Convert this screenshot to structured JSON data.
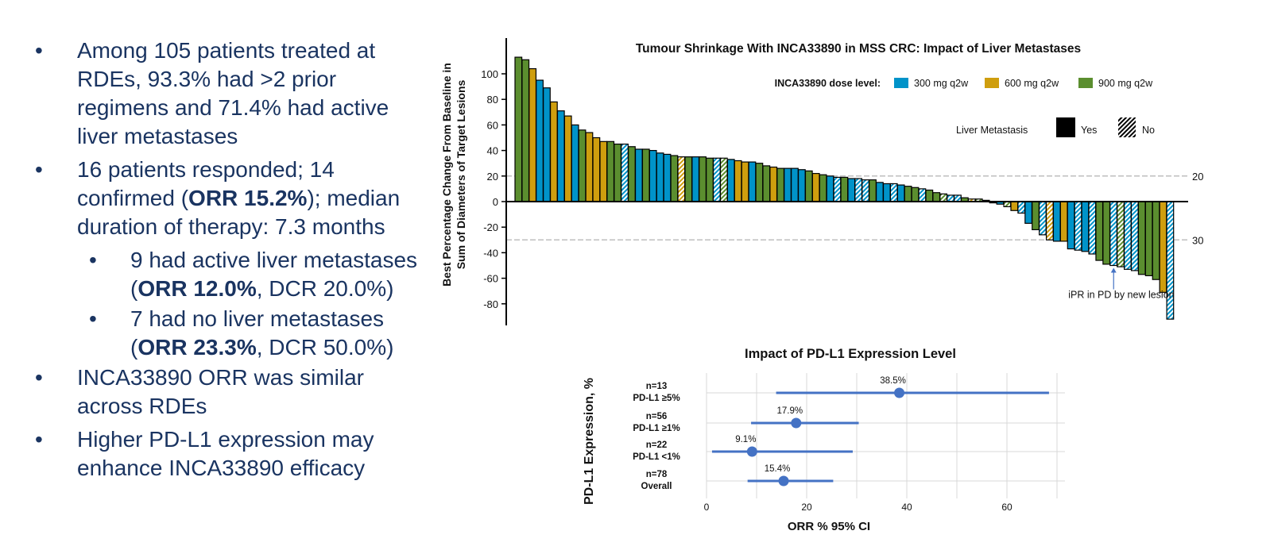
{
  "bullets": [
    {
      "level": 1,
      "parts": [
        {
          "text": "Among 105 patients treated at RDEs, 93.3% had >2 prior regimens and 71.4% had active liver metastases",
          "bold": false
        }
      ]
    },
    {
      "level": 1,
      "parts": [
        {
          "text": "16 patients responded; 14 confirmed (",
          "bold": false
        },
        {
          "text": "ORR 15.2%",
          "bold": true
        },
        {
          "text": "); median duration of therapy: 7.3 months",
          "bold": false
        }
      ]
    },
    {
      "level": 2,
      "parts": [
        {
          "text": "9 had active liver metastases (",
          "bold": false
        },
        {
          "text": "ORR 12.0%",
          "bold": true
        },
        {
          "text": ", DCR 20.0%)",
          "bold": false
        }
      ]
    },
    {
      "level": 2,
      "parts": [
        {
          "text": "7 had no liver metastases (",
          "bold": false
        },
        {
          "text": "ORR 23.3%",
          "bold": true
        },
        {
          "text": ", DCR 50.0%)",
          "bold": false
        }
      ]
    },
    {
      "level": 1,
      "parts": [
        {
          "text": "INCA33890 ORR was similar across RDEs",
          "bold": false
        }
      ]
    },
    {
      "level": 1,
      "parts": [
        {
          "text": "Higher PD-L1 expression may enhance INCA33890 efficacy",
          "bold": false
        }
      ]
    }
  ],
  "bullet_glyph": "•",
  "colors": {
    "text": "#1a3461",
    "dose_300": "#0093c9",
    "dose_600": "#cf9e0e",
    "dose_900": "#5b8e2f",
    "forest": "#4472c4",
    "gridline": "#d9d9d9",
    "refline": "#bfbfbf"
  },
  "chart_data": [
    {
      "type": "bar",
      "subtype": "waterfall",
      "title": "Tumour Shrinkage With INCA33890 in MSS CRC: Impact of Liver Metastases",
      "ylabel": "Best Percentage Change From Baseline in Sum of Diameters of Target Lesions",
      "ylabel_lines": [
        "Best Percentage Change From Baseline in",
        "Sum of Diameters of Target Lesions"
      ],
      "xlabel": "",
      "ylim": [
        -92,
        116
      ],
      "yticks": [
        100,
        80,
        60,
        40,
        20,
        0,
        -20,
        -40,
        -60,
        -80
      ],
      "reference_lines": [
        {
          "value": 20,
          "label": "20",
          "style": "dashed"
        },
        {
          "value": -30,
          "label": "30",
          "style": "dashed"
        }
      ],
      "legend_dose": {
        "title": "INCA33890 dose level:",
        "items": [
          {
            "key": "300",
            "label": "300 mg q2w"
          },
          {
            "key": "600",
            "label": "600 mg q2w"
          },
          {
            "key": "900",
            "label": "900 mg q2w"
          }
        ],
        "placement": "top-right"
      },
      "legend_liver": {
        "title": "Liver Metastasis",
        "items": [
          {
            "key": "yes",
            "label": "Yes"
          },
          {
            "key": "no",
            "label": "No"
          }
        ],
        "placement": "top-right"
      },
      "annotation": {
        "text": "iPR in PD by new lesion",
        "bar_index": 84
      },
      "bars": [
        {
          "v": 113,
          "d": "900",
          "liver": "yes"
        },
        {
          "v": 111,
          "d": "900",
          "liver": "yes"
        },
        {
          "v": 104,
          "d": "600",
          "liver": "yes"
        },
        {
          "v": 95,
          "d": "300",
          "liver": "yes"
        },
        {
          "v": 89,
          "d": "300",
          "liver": "yes"
        },
        {
          "v": 78,
          "d": "600",
          "liver": "yes"
        },
        {
          "v": 71,
          "d": "300",
          "liver": "yes"
        },
        {
          "v": 67,
          "d": "600",
          "liver": "yes"
        },
        {
          "v": 60,
          "d": "300",
          "liver": "yes"
        },
        {
          "v": 56,
          "d": "900",
          "liver": "yes"
        },
        {
          "v": 54,
          "d": "600",
          "liver": "yes"
        },
        {
          "v": 50,
          "d": "600",
          "liver": "yes"
        },
        {
          "v": 47,
          "d": "600",
          "liver": "yes"
        },
        {
          "v": 47,
          "d": "900",
          "liver": "yes"
        },
        {
          "v": 45,
          "d": "900",
          "liver": "yes"
        },
        {
          "v": 45,
          "d": "300",
          "liver": "no"
        },
        {
          "v": 43,
          "d": "900",
          "liver": "yes"
        },
        {
          "v": 41,
          "d": "300",
          "liver": "yes"
        },
        {
          "v": 41,
          "d": "900",
          "liver": "yes"
        },
        {
          "v": 40,
          "d": "300",
          "liver": "yes"
        },
        {
          "v": 38,
          "d": "300",
          "liver": "yes"
        },
        {
          "v": 37,
          "d": "300",
          "liver": "yes"
        },
        {
          "v": 36,
          "d": "900",
          "liver": "yes"
        },
        {
          "v": 35,
          "d": "600",
          "liver": "no"
        },
        {
          "v": 35,
          "d": "900",
          "liver": "yes"
        },
        {
          "v": 35,
          "d": "300",
          "liver": "yes"
        },
        {
          "v": 35,
          "d": "900",
          "liver": "yes"
        },
        {
          "v": 34,
          "d": "900",
          "liver": "yes"
        },
        {
          "v": 34,
          "d": "300",
          "liver": "no"
        },
        {
          "v": 34,
          "d": "900",
          "liver": "no"
        },
        {
          "v": 33,
          "d": "300",
          "liver": "yes"
        },
        {
          "v": 32,
          "d": "600",
          "liver": "yes"
        },
        {
          "v": 31,
          "d": "600",
          "liver": "yes"
        },
        {
          "v": 31,
          "d": "300",
          "liver": "yes"
        },
        {
          "v": 30,
          "d": "900",
          "liver": "yes"
        },
        {
          "v": 28,
          "d": "900",
          "liver": "yes"
        },
        {
          "v": 27,
          "d": "600",
          "liver": "yes"
        },
        {
          "v": 26,
          "d": "900",
          "liver": "yes"
        },
        {
          "v": 26,
          "d": "300",
          "liver": "yes"
        },
        {
          "v": 26,
          "d": "300",
          "liver": "yes"
        },
        {
          "v": 25,
          "d": "300",
          "liver": "yes"
        },
        {
          "v": 24,
          "d": "900",
          "liver": "yes"
        },
        {
          "v": 22,
          "d": "600",
          "liver": "yes"
        },
        {
          "v": 21,
          "d": "900",
          "liver": "yes"
        },
        {
          "v": 20,
          "d": "300",
          "liver": "yes"
        },
        {
          "v": 19,
          "d": "300",
          "liver": "no"
        },
        {
          "v": 19,
          "d": "900",
          "liver": "yes"
        },
        {
          "v": 18,
          "d": "300",
          "liver": "yes"
        },
        {
          "v": 18,
          "d": "300",
          "liver": "no"
        },
        {
          "v": 17,
          "d": "300",
          "liver": "no"
        },
        {
          "v": 17,
          "d": "900",
          "liver": "yes"
        },
        {
          "v": 15,
          "d": "300",
          "liver": "yes"
        },
        {
          "v": 14,
          "d": "300",
          "liver": "yes"
        },
        {
          "v": 14,
          "d": "300",
          "liver": "no"
        },
        {
          "v": 13,
          "d": "300",
          "liver": "yes"
        },
        {
          "v": 12,
          "d": "900",
          "liver": "yes"
        },
        {
          "v": 11,
          "d": "900",
          "liver": "yes"
        },
        {
          "v": 10,
          "d": "300",
          "liver": "no"
        },
        {
          "v": 9,
          "d": "900",
          "liver": "yes"
        },
        {
          "v": 7,
          "d": "900",
          "liver": "yes"
        },
        {
          "v": 6,
          "d": "900",
          "liver": "no"
        },
        {
          "v": 5,
          "d": "300",
          "liver": "no"
        },
        {
          "v": 5,
          "d": "300",
          "liver": "no"
        },
        {
          "v": 3,
          "d": "900",
          "liver": "yes"
        },
        {
          "v": 2,
          "d": "600",
          "liver": "no"
        },
        {
          "v": 2,
          "d": "900",
          "liver": "no"
        },
        {
          "v": 1,
          "d": "900",
          "liver": "no"
        },
        {
          "v": -1,
          "d": "600",
          "liver": "no"
        },
        {
          "v": -2,
          "d": "300",
          "liver": "yes"
        },
        {
          "v": -4,
          "d": "900",
          "liver": "no"
        },
        {
          "v": -7,
          "d": "600",
          "liver": "yes"
        },
        {
          "v": -9,
          "d": "300",
          "liver": "no"
        },
        {
          "v": -17,
          "d": "300",
          "liver": "yes"
        },
        {
          "v": -22,
          "d": "900",
          "liver": "yes"
        },
        {
          "v": -26,
          "d": "300",
          "liver": "no"
        },
        {
          "v": -30,
          "d": "600",
          "liver": "no"
        },
        {
          "v": -31,
          "d": "300",
          "liver": "yes"
        },
        {
          "v": -31,
          "d": "600",
          "liver": "yes"
        },
        {
          "v": -37,
          "d": "300",
          "liver": "yes"
        },
        {
          "v": -38,
          "d": "300",
          "liver": "no"
        },
        {
          "v": -39,
          "d": "300",
          "liver": "yes"
        },
        {
          "v": -41,
          "d": "300",
          "liver": "no"
        },
        {
          "v": -46,
          "d": "900",
          "liver": "yes"
        },
        {
          "v": -49,
          "d": "900",
          "liver": "yes"
        },
        {
          "v": -50,
          "d": "300",
          "liver": "no"
        },
        {
          "v": -51,
          "d": "900",
          "liver": "no"
        },
        {
          "v": -53,
          "d": "300",
          "liver": "no"
        },
        {
          "v": -54,
          "d": "300",
          "liver": "no"
        },
        {
          "v": -57,
          "d": "900",
          "liver": "yes"
        },
        {
          "v": -58,
          "d": "900",
          "liver": "yes"
        },
        {
          "v": -61,
          "d": "900",
          "liver": "yes"
        },
        {
          "v": -71,
          "d": "600",
          "liver": "yes"
        },
        {
          "v": -92,
          "d": "300",
          "liver": "no"
        }
      ]
    },
    {
      "type": "scatter",
      "subtype": "forest",
      "title": "Impact of PD-L1 Expression Level",
      "xlabel": "ORR % 95% CI",
      "ylabel": "PD-L1 Expression, %",
      "xlim": [
        0,
        70
      ],
      "xticks": [
        0,
        20,
        40,
        60
      ],
      "grid": true,
      "rows": [
        {
          "n_label": "n=13",
          "group": "PD-L1 ≥5%",
          "orr": 38.5,
          "ci": [
            13.9,
            68.4
          ],
          "label": "38.5%"
        },
        {
          "n_label": "n=56",
          "group": "PD-L1 ≥1%",
          "orr": 17.9,
          "ci": [
            8.9,
            30.4
          ],
          "label": "17.9%"
        },
        {
          "n_label": "n=22",
          "group": "PD-L1 <1%",
          "orr": 9.1,
          "ci": [
            1.1,
            29.2
          ],
          "label": "9.1%"
        },
        {
          "n_label": "n=78",
          "group": "Overall",
          "orr": 15.4,
          "ci": [
            8.2,
            25.3
          ],
          "label": "15.4%"
        }
      ]
    }
  ]
}
